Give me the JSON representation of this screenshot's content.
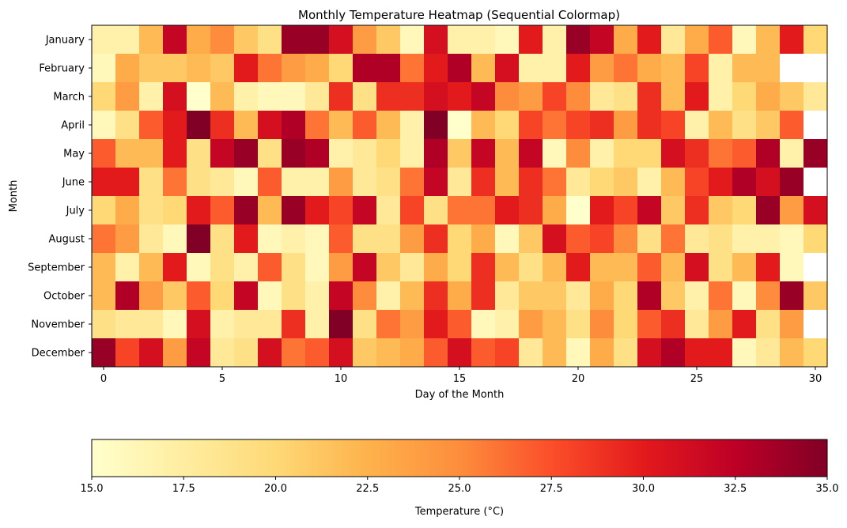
{
  "chart_data": {
    "type": "heatmap",
    "title": "Monthly Temperature Heatmap (Sequential Colormap)",
    "xlabel": "Day of the Month",
    "ylabel": "Month",
    "colorbar_label": "Temperature (°C)",
    "colormap": "YlOrRd",
    "vmin": 15.0,
    "vmax": 35.0,
    "x_ticks": [
      0,
      5,
      10,
      15,
      20,
      25,
      30
    ],
    "colorbar_ticks": [
      "15.0",
      "17.5",
      "20.0",
      "22.5",
      "25.0",
      "27.5",
      "30.0",
      "32.5",
      "35.0"
    ],
    "months": [
      "January",
      "February",
      "March",
      "April",
      "May",
      "June",
      "July",
      "August",
      "September",
      "October",
      "November",
      "December"
    ],
    "days": [
      0,
      1,
      2,
      3,
      4,
      5,
      6,
      7,
      8,
      9,
      10,
      11,
      12,
      13,
      14,
      15,
      16,
      17,
      18,
      19,
      20,
      21,
      22,
      23,
      24,
      25,
      26,
      27,
      28,
      29,
      30
    ],
    "values": [
      [
        17,
        17,
        22,
        32,
        23,
        25,
        21,
        19,
        34,
        34,
        31,
        24,
        21,
        16,
        31,
        17,
        17,
        16,
        30,
        17,
        34,
        32,
        23,
        30,
        18,
        23,
        27,
        16,
        22,
        30,
        20
      ],
      [
        16,
        23,
        21,
        21,
        22,
        21,
        30,
        26,
        24,
        23,
        20,
        33,
        33,
        26,
        30,
        33,
        22,
        31,
        17,
        17,
        30,
        24,
        26,
        23,
        22,
        28,
        17,
        22,
        22,
        null,
        null
      ],
      [
        20,
        24,
        17,
        31,
        15,
        22,
        17,
        16,
        16,
        18,
        29,
        19,
        29,
        29,
        31,
        30,
        32,
        25,
        24,
        28,
        25,
        18,
        19,
        29,
        22,
        30,
        17,
        20,
        23,
        21,
        18
      ],
      [
        16,
        19,
        27,
        30,
        35,
        29,
        22,
        31,
        33,
        26,
        22,
        27,
        22,
        17,
        35,
        15,
        22,
        20,
        28,
        26,
        28,
        29,
        24,
        29,
        28,
        17,
        22,
        19,
        21,
        27,
        null
      ],
      [
        27,
        22,
        22,
        30,
        19,
        32,
        34,
        19,
        34,
        33,
        17,
        18,
        20,
        17,
        33,
        21,
        32,
        22,
        32,
        16,
        25,
        17,
        20,
        20,
        31,
        29,
        26,
        27,
        33,
        17,
        34
      ],
      [
        30,
        30,
        19,
        26,
        19,
        18,
        16,
        27,
        17,
        17,
        24,
        18,
        19,
        26,
        32,
        18,
        29,
        22,
        29,
        26,
        18,
        20,
        21,
        17,
        22,
        28,
        30,
        33,
        31,
        34,
        null
      ],
      [
        20,
        23,
        19,
        20,
        30,
        27,
        34,
        22,
        34,
        30,
        28,
        32,
        18,
        28,
        19,
        26,
        26,
        30,
        29,
        23,
        15,
        30,
        28,
        32,
        21,
        29,
        21,
        20,
        34,
        24,
        31
      ],
      [
        26,
        24,
        18,
        16,
        35,
        19,
        30,
        16,
        17,
        16,
        27,
        19,
        19,
        24,
        29,
        20,
        23,
        16,
        21,
        31,
        27,
        28,
        25,
        19,
        26,
        18,
        19,
        17,
        17,
        16,
        20
      ],
      [
        22,
        17,
        22,
        30,
        16,
        19,
        17,
        27,
        19,
        16,
        24,
        32,
        21,
        18,
        23,
        20,
        29,
        22,
        19,
        22,
        30,
        22,
        22,
        27,
        22,
        31,
        19,
        22,
        30,
        16,
        null
      ],
      [
        22,
        33,
        24,
        21,
        27,
        20,
        32,
        16,
        19,
        17,
        32,
        25,
        17,
        22,
        29,
        23,
        29,
        18,
        21,
        21,
        18,
        23,
        20,
        33,
        21,
        17,
        26,
        16,
        25,
        34,
        21
      ],
      [
        19,
        18,
        18,
        16,
        31,
        17,
        18,
        18,
        29,
        17,
        35,
        19,
        26,
        24,
        30,
        27,
        16,
        17,
        24,
        22,
        19,
        25,
        20,
        27,
        29,
        18,
        24,
        30,
        19,
        24,
        null
      ],
      [
        34,
        28,
        31,
        24,
        32,
        18,
        19,
        31,
        26,
        27,
        31,
        21,
        22,
        23,
        27,
        31,
        27,
        28,
        18,
        22,
        16,
        23,
        19,
        31,
        33,
        30,
        30,
        16,
        18,
        22,
        20
      ]
    ]
  }
}
